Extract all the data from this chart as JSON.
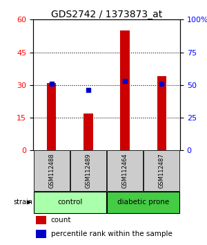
{
  "title": "GDS2742 / 1373873_at",
  "samples": [
    "GSM112488",
    "GSM112489",
    "GSM112464",
    "GSM112487"
  ],
  "counts": [
    31,
    17,
    55,
    34
  ],
  "percentiles": [
    51,
    46,
    53,
    51
  ],
  "ylim_left": [
    0,
    60
  ],
  "ylim_right": [
    0,
    100
  ],
  "yticks_left": [
    0,
    15,
    30,
    45,
    60
  ],
  "yticks_right": [
    0,
    25,
    50,
    75,
    100
  ],
  "ytick_labels_right": [
    "0",
    "25",
    "50",
    "75",
    "100%"
  ],
  "bar_color": "#cc0000",
  "dot_color": "#0000cc",
  "groups": [
    {
      "label": "control",
      "indices": [
        0,
        1
      ],
      "color": "#aaffaa"
    },
    {
      "label": "diabetic prone",
      "indices": [
        2,
        3
      ],
      "color": "#44cc44"
    }
  ],
  "strain_label": "strain",
  "legend_count_label": "count",
  "legend_pct_label": "percentile rank within the sample",
  "sample_box_color": "#cccccc",
  "title_fontsize": 10,
  "tick_fontsize": 8,
  "bar_width": 0.25
}
